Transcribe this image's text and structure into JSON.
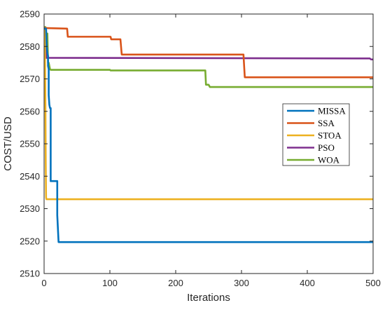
{
  "chart_data": {
    "type": "line",
    "title": "",
    "xlabel": "Iterations",
    "ylabel": "COST/USD",
    "xlim": [
      0,
      500
    ],
    "ylim": [
      2510,
      2590
    ],
    "xticks": [
      0,
      100,
      200,
      300,
      400,
      500
    ],
    "yticks": [
      2510,
      2520,
      2530,
      2540,
      2550,
      2560,
      2570,
      2580,
      2590
    ],
    "grid": false,
    "legend_position": "center-right",
    "series": [
      {
        "name": "MISSA",
        "color": "#0072BD",
        "x": [
          0,
          3,
          4,
          5,
          6,
          6,
          7,
          7,
          8,
          9,
          10,
          10,
          12,
          12,
          20,
          20,
          22,
          500
        ],
        "y": [
          2585.5,
          2585.5,
          2580,
          2578,
          2577,
          2574,
          2573,
          2565,
          2562,
          2561,
          2561,
          2538.5,
          2538.5,
          2538.5,
          2538.5,
          2528,
          2519.7,
          2519.7
        ]
      },
      {
        "name": "SSA",
        "color": "#D95319",
        "x": [
          0,
          35,
          36,
          101,
          102,
          116,
          118,
          303,
          305,
          500
        ],
        "y": [
          2585.7,
          2585.5,
          2583,
          2583,
          2582.2,
          2582.2,
          2577.5,
          2577.5,
          2570.5,
          2570.5
        ]
      },
      {
        "name": "STOA",
        "color": "#EDB120",
        "x": [
          0,
          1,
          2,
          2.5,
          3,
          3.5,
          500
        ],
        "y": [
          2585,
          2585,
          2562,
          2544,
          2533.5,
          2532.9,
          2532.9
        ]
      },
      {
        "name": "PSO",
        "color": "#7E2F8E",
        "x": [
          0,
          2,
          3,
          495,
          497,
          500
        ],
        "y": [
          2585.5,
          2585.5,
          2576.5,
          2576.3,
          2576,
          2576
        ]
      },
      {
        "name": "WOA",
        "color": "#77AC30",
        "x": [
          0,
          2,
          3,
          5,
          6,
          7,
          9,
          10,
          100,
          101,
          245,
          246,
          250,
          252,
          500
        ],
        "y": [
          2586,
          2586,
          2584,
          2584,
          2575,
          2575,
          2573,
          2572.8,
          2572.8,
          2572.6,
          2572.6,
          2568.2,
          2568.2,
          2567.5,
          2567.5
        ]
      }
    ]
  }
}
